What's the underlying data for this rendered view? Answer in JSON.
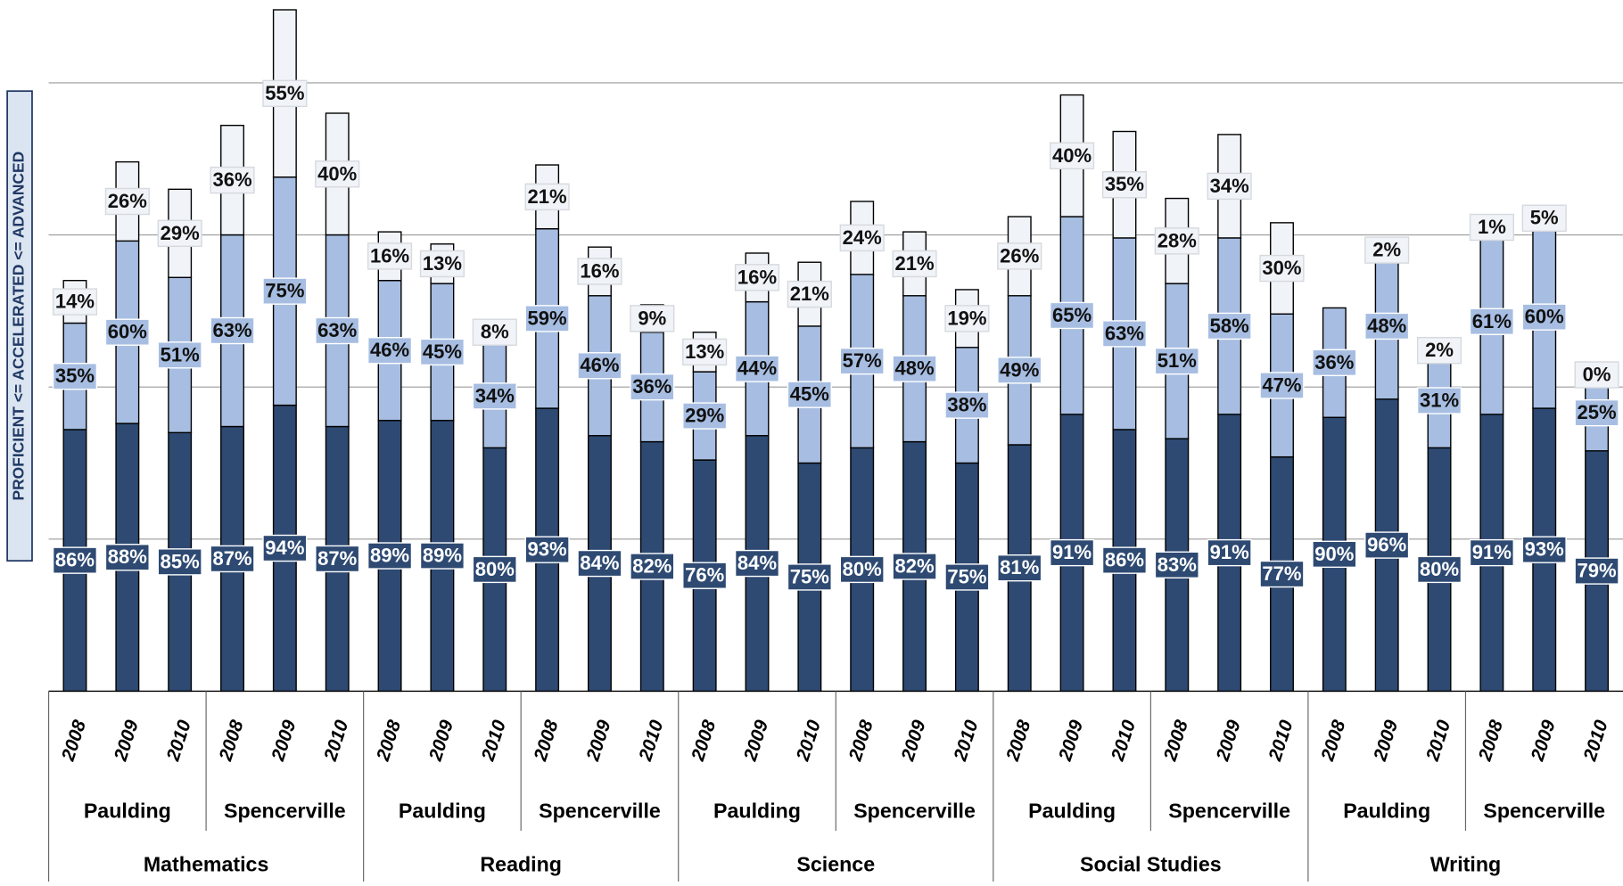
{
  "chart_data": {
    "type": "stacked_bar",
    "y_label": "PROFICIENT <= ACCELERATED <= ADVANCED",
    "groups": [
      {
        "name": "Mathematics",
        "subgroups": [
          {
            "name": "Paulding",
            "categories": [
              "2008",
              "2009",
              "2010"
            ]
          },
          {
            "name": "Spencerville",
            "categories": [
              "2008",
              "2009",
              "2010"
            ]
          }
        ]
      },
      {
        "name": "Reading",
        "subgroups": [
          {
            "name": "Paulding",
            "categories": [
              "2008",
              "2009",
              "2010"
            ]
          },
          {
            "name": "Spencerville",
            "categories": [
              "2008",
              "2009",
              "2010"
            ]
          }
        ]
      },
      {
        "name": "Science",
        "subgroups": [
          {
            "name": "Paulding",
            "categories": [
              "2008",
              "2009",
              "2010"
            ]
          },
          {
            "name": "Spencerville",
            "categories": [
              "2008",
              "2009",
              "2010"
            ]
          }
        ]
      },
      {
        "name": "Social Studies",
        "subgroups": [
          {
            "name": "Paulding",
            "categories": [
              "2008",
              "2009",
              "2010"
            ]
          },
          {
            "name": "Spencerville",
            "categories": [
              "2008",
              "2009",
              "2010"
            ]
          }
        ]
      },
      {
        "name": "Writing",
        "subgroups": [
          {
            "name": "Paulding",
            "categories": [
              "2008",
              "2009",
              "2010"
            ]
          },
          {
            "name": "Spencerville",
            "categories": [
              "2008",
              "2009",
              "2010"
            ]
          }
        ]
      }
    ],
    "series": [
      {
        "color": "#2e4a72",
        "values": [
          86,
          88,
          85,
          87,
          94,
          87,
          89,
          89,
          80,
          93,
          84,
          82,
          76,
          84,
          75,
          80,
          82,
          75,
          81,
          91,
          86,
          83,
          91,
          77,
          90,
          96,
          80,
          91,
          93,
          79
        ],
        "value_labels": [
          "86%",
          "88%",
          "85%",
          "87%",
          "94%",
          "87%",
          "89%",
          "89%",
          "80%",
          "93%",
          "84%",
          "82%",
          "76%",
          "84%",
          "75%",
          "80%",
          "82%",
          "75%",
          "81%",
          "91%",
          "86%",
          "83%",
          "91%",
          "77%",
          "90%",
          "96%",
          "80%",
          "91%",
          "93%",
          "79%"
        ]
      },
      {
        "color": "#a7bee2",
        "values": [
          35,
          60,
          51,
          63,
          75,
          63,
          46,
          45,
          34,
          59,
          46,
          36,
          29,
          44,
          45,
          57,
          48,
          38,
          49,
          65,
          63,
          51,
          58,
          47,
          36,
          48,
          31,
          61,
          60,
          25
        ],
        "value_labels": [
          "35%",
          "60%",
          "51%",
          "63%",
          "75%",
          "63%",
          "46%",
          "45%",
          "34%",
          "59%",
          "46%",
          "36%",
          "29%",
          "44%",
          "45%",
          "57%",
          "48%",
          "38%",
          "49%",
          "65%",
          "63%",
          "51%",
          "58%",
          "47%",
          "36%",
          "48%",
          "31%",
          "61%",
          "60%",
          "25%"
        ]
      },
      {
        "color": "#f0f3f8",
        "values": [
          14,
          26,
          29,
          36,
          55,
          40,
          16,
          13,
          8,
          21,
          16,
          9,
          13,
          16,
          21,
          24,
          21,
          19,
          26,
          40,
          35,
          28,
          34,
          30,
          null,
          2,
          2,
          1,
          5,
          0
        ],
        "value_labels": [
          "14%",
          "26%",
          "29%",
          "36%",
          "55%",
          "40%",
          "16%",
          "13%",
          "8%",
          "21%",
          "16%",
          "9%",
          "13%",
          "16%",
          "21%",
          "24%",
          "21%",
          "19%",
          "26%",
          "40%",
          "35%",
          "28%",
          "34%",
          "30%",
          null,
          "2%",
          "2%",
          "1%",
          "5%",
          "0%"
        ]
      }
    ],
    "ylim": [
      0,
      225
    ],
    "yticks": [
      0,
      50,
      100,
      150,
      200
    ],
    "grid": true
  }
}
